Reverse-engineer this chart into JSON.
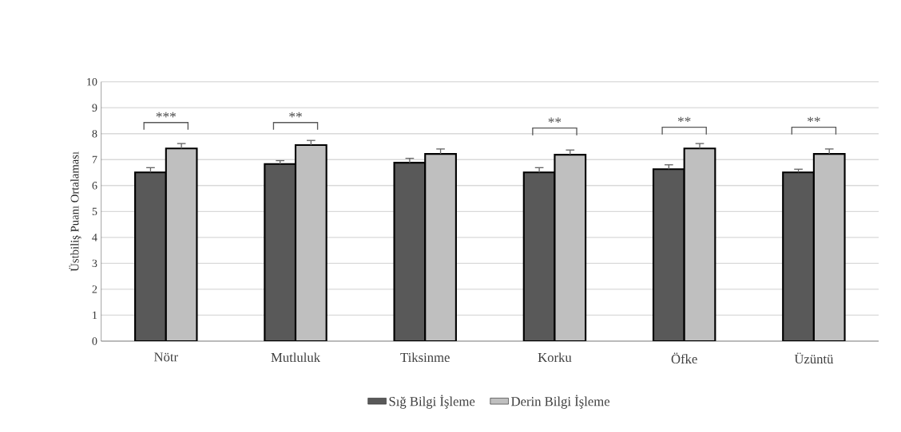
{
  "chart_data": {
    "type": "bar",
    "ylabel": "Üstbiliş Puanı Ortalaması",
    "categories": [
      "Nötr",
      "Mutluluk",
      "Tiksinme",
      "Korku",
      "Öfke",
      "Üzüntü"
    ],
    "series": [
      {
        "name": "Sığ Bilgi İşleme",
        "color": "#595959",
        "values": [
          6.51,
          6.83,
          6.88,
          6.51,
          6.63,
          6.51
        ],
        "errors": [
          0.18,
          0.13,
          0.17,
          0.18,
          0.17,
          0.12
        ]
      },
      {
        "name": "Derin Bilgi İşleme",
        "color": "#bfbfbf",
        "values": [
          7.43,
          7.56,
          7.22,
          7.19,
          7.43,
          7.22
        ],
        "errors": [
          0.19,
          0.18,
          0.19,
          0.18,
          0.19,
          0.19
        ]
      }
    ],
    "ylim": [
      0,
      10
    ],
    "yticks": [
      0,
      1,
      2,
      3,
      4,
      5,
      6,
      7,
      8,
      9,
      10
    ],
    "grid": "y",
    "legend": "bottom",
    "annotations": [
      "***",
      "**",
      "**",
      "**",
      "**"
    ]
  }
}
